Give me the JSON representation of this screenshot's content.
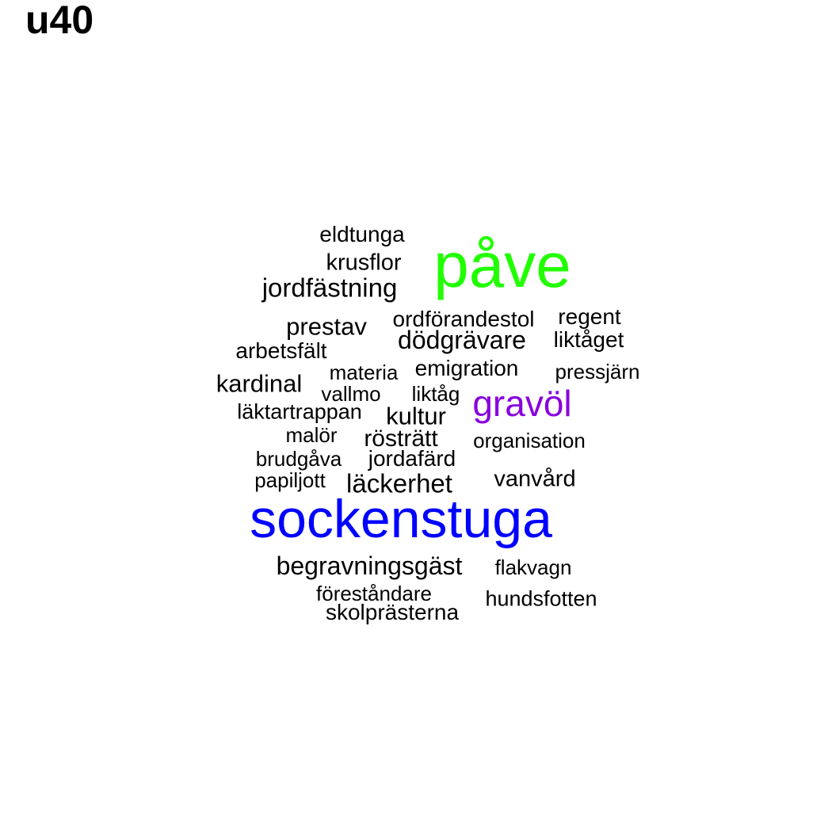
{
  "title": "u40",
  "colors": {
    "default": "#000000",
    "green": "#22ff00",
    "blue": "#0000ff",
    "purple": "#8800dd"
  },
  "words": [
    {
      "text": "eldtunga",
      "color": "default"
    },
    {
      "text": "påve",
      "color": "green"
    },
    {
      "text": "krusflor",
      "color": "default"
    },
    {
      "text": "jordfästning",
      "color": "default"
    },
    {
      "text": "ordförandestol",
      "color": "default"
    },
    {
      "text": "regent",
      "color": "default"
    },
    {
      "text": "prestav",
      "color": "default"
    },
    {
      "text": "dödgrävare",
      "color": "default"
    },
    {
      "text": "liktåget",
      "color": "default"
    },
    {
      "text": "arbetsfält",
      "color": "default"
    },
    {
      "text": "emigration",
      "color": "default"
    },
    {
      "text": "materia",
      "color": "default"
    },
    {
      "text": "pressjärn",
      "color": "default"
    },
    {
      "text": "kardinal",
      "color": "default"
    },
    {
      "text": "vallmo",
      "color": "default"
    },
    {
      "text": "liktåg",
      "color": "default"
    },
    {
      "text": "gravöl",
      "color": "purple"
    },
    {
      "text": "läktartrappan",
      "color": "default"
    },
    {
      "text": "kultur",
      "color": "default"
    },
    {
      "text": "malör",
      "color": "default"
    },
    {
      "text": "rösträtt",
      "color": "default"
    },
    {
      "text": "organisation",
      "color": "default"
    },
    {
      "text": "brudgåva",
      "color": "default"
    },
    {
      "text": "jordafärd",
      "color": "default"
    },
    {
      "text": "papiljott",
      "color": "default"
    },
    {
      "text": "läckerhet",
      "color": "default"
    },
    {
      "text": "vanvård",
      "color": "default"
    },
    {
      "text": "sockenstuga",
      "color": "blue"
    },
    {
      "text": "begravningsgäst",
      "color": "default"
    },
    {
      "text": "flakvagn",
      "color": "default"
    },
    {
      "text": "föreståndare",
      "color": "default"
    },
    {
      "text": "hundsfotten",
      "color": "default"
    },
    {
      "text": "skolprästerna",
      "color": "default"
    }
  ]
}
